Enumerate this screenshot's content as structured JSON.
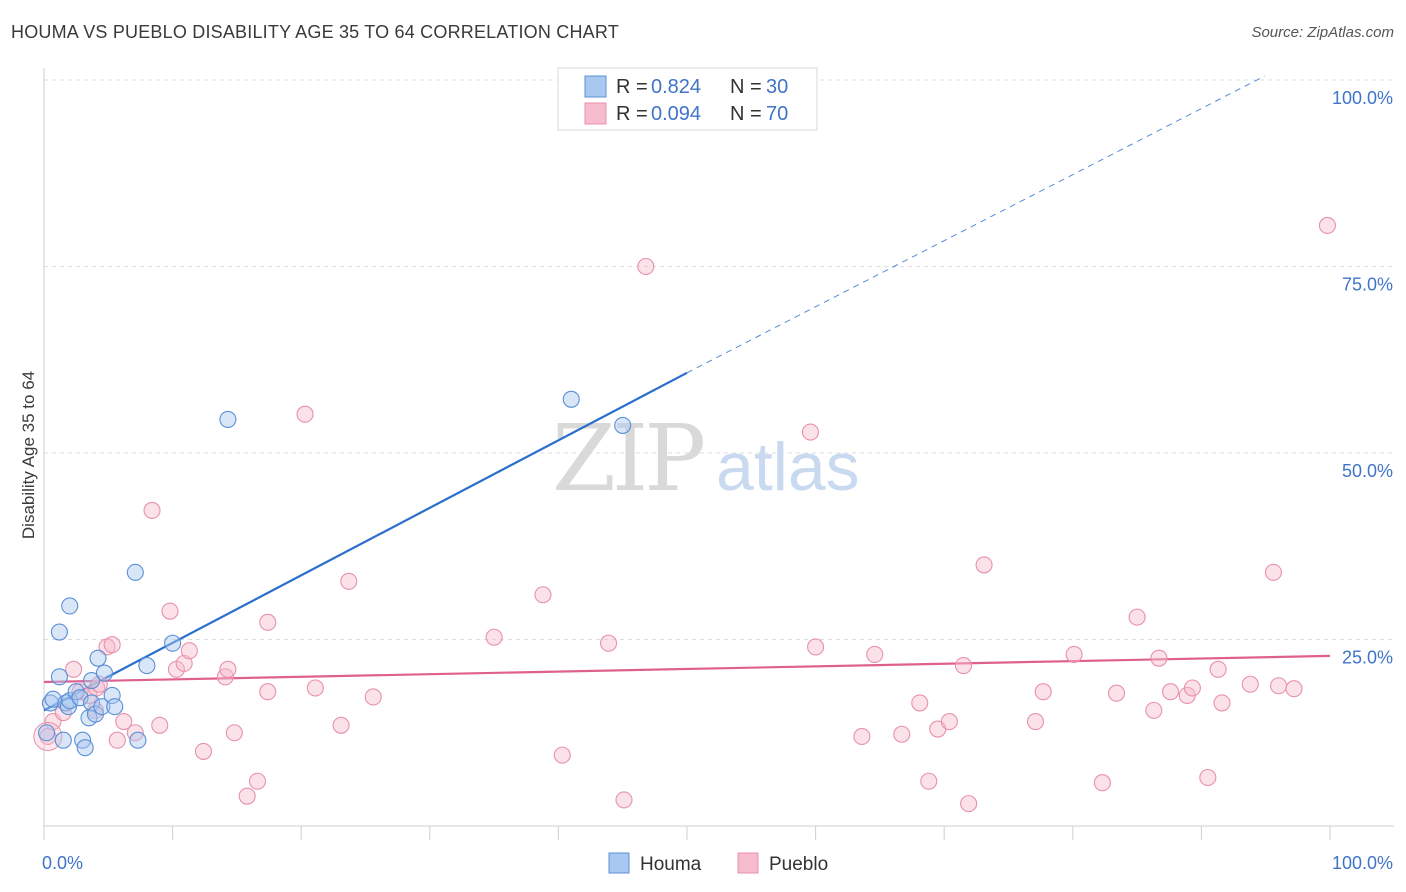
{
  "title": "HOUMA VS PUEBLO DISABILITY AGE 35 TO 64 CORRELATION CHART",
  "source": "Source: ZipAtlas.com",
  "watermark": {
    "part1": "ZIP",
    "part2": "atlas"
  },
  "colors": {
    "houma_fill": "#a8c8f0",
    "houma_stroke": "#5b8fd6",
    "houma_line": "#2a6fcc",
    "pueblo_fill": "#f7bccd",
    "pueblo_stroke": "#e891ab",
    "pueblo_line": "#e0608d",
    "grid": "#dddddd",
    "axis_label": "#3f74c9"
  },
  "chart_data": {
    "type": "scatter",
    "title": "HOUMA VS PUEBLO DISABILITY AGE 35 TO 64 CORRELATION CHART",
    "xlabel": "",
    "ylabel": "Disability Age 35 to 64",
    "xlim": [
      0,
      100
    ],
    "ylim": [
      0,
      100
    ],
    "x_tick_labels": [
      {
        "value": 0,
        "label": "0.0%"
      },
      {
        "value": 100,
        "label": "100.0%"
      }
    ],
    "y_tick_labels": [
      {
        "value": 25,
        "label": "25.0%"
      },
      {
        "value": 50,
        "label": "50.0%"
      },
      {
        "value": 75,
        "label": "75.0%"
      },
      {
        "value": 100,
        "label": "100.0%"
      }
    ],
    "legend": {
      "position": "top-center",
      "entries": [
        {
          "series": "Houma",
          "r_label": "R =",
          "r_value": "0.824",
          "n_label": "N =",
          "n_value": "30"
        },
        {
          "series": "Pueblo",
          "r_label": "R =",
          "r_value": "0.094",
          "n_label": "N =",
          "n_value": "70"
        }
      ]
    },
    "bottom_legend": [
      "Houma",
      "Pueblo"
    ],
    "series": [
      {
        "name": "Houma",
        "points": [
          [
            0.2,
            12.5
          ],
          [
            0.5,
            16.5
          ],
          [
            0.7,
            17.0
          ],
          [
            1.2,
            20.0
          ],
          [
            1.2,
            26.0
          ],
          [
            1.5,
            11.5
          ],
          [
            1.7,
            16.5
          ],
          [
            1.9,
            16.0
          ],
          [
            2.0,
            16.8
          ],
          [
            2.0,
            29.5
          ],
          [
            2.5,
            18.0
          ],
          [
            2.8,
            17.2
          ],
          [
            3.0,
            11.5
          ],
          [
            3.2,
            10.5
          ],
          [
            3.5,
            14.5
          ],
          [
            3.7,
            16.5
          ],
          [
            3.7,
            19.5
          ],
          [
            4.0,
            15.0
          ],
          [
            4.2,
            22.5
          ],
          [
            4.5,
            16.0
          ],
          [
            4.7,
            20.5
          ],
          [
            5.3,
            17.5
          ],
          [
            5.5,
            16.0
          ],
          [
            7.3,
            11.5
          ],
          [
            7.1,
            34.0
          ],
          [
            8.0,
            21.5
          ],
          [
            10.0,
            24.5
          ],
          [
            14.3,
            54.5
          ],
          [
            41.0,
            57.2
          ],
          [
            45.0,
            53.7
          ]
        ],
        "trend": {
          "x0": 0,
          "y0": 15.5,
          "x1": 100,
          "y1": 106.0,
          "solid_until_x": 50
        }
      },
      {
        "name": "Pueblo",
        "points": [
          [
            0.3,
            12.0
          ],
          [
            0.7,
            14.0
          ],
          [
            1.5,
            15.2
          ],
          [
            2.3,
            21.0
          ],
          [
            2.8,
            18.0
          ],
          [
            3.5,
            17.5
          ],
          [
            4.0,
            15.5
          ],
          [
            4.1,
            18.5
          ],
          [
            4.3,
            19.0
          ],
          [
            4.9,
            24.0
          ],
          [
            5.3,
            24.3
          ],
          [
            5.7,
            11.5
          ],
          [
            6.2,
            14.0
          ],
          [
            7.1,
            12.5
          ],
          [
            8.4,
            42.3
          ],
          [
            9.0,
            13.5
          ],
          [
            9.8,
            28.8
          ],
          [
            10.3,
            21.0
          ],
          [
            10.9,
            21.8
          ],
          [
            11.3,
            23.5
          ],
          [
            12.4,
            10.0
          ],
          [
            14.1,
            20.0
          ],
          [
            14.3,
            21.0
          ],
          [
            14.8,
            12.5
          ],
          [
            15.8,
            4.0
          ],
          [
            16.6,
            6.0
          ],
          [
            17.4,
            27.3
          ],
          [
            17.4,
            18.0
          ],
          [
            20.3,
            55.2
          ],
          [
            21.1,
            18.5
          ],
          [
            23.1,
            13.5
          ],
          [
            23.7,
            32.8
          ],
          [
            25.6,
            17.3
          ],
          [
            35.0,
            25.3
          ],
          [
            38.8,
            31.0
          ],
          [
            40.3,
            9.5
          ],
          [
            43.9,
            24.5
          ],
          [
            45.1,
            3.5
          ],
          [
            46.8,
            75.0
          ],
          [
            59.6,
            52.8
          ],
          [
            60.0,
            24.0
          ],
          [
            63.6,
            12.0
          ],
          [
            64.6,
            23.0
          ],
          [
            66.7,
            12.3
          ],
          [
            68.1,
            16.5
          ],
          [
            68.8,
            6.0
          ],
          [
            69.5,
            13.0
          ],
          [
            70.4,
            14.0
          ],
          [
            71.5,
            21.5
          ],
          [
            71.9,
            3.0
          ],
          [
            73.1,
            35.0
          ],
          [
            77.1,
            14.0
          ],
          [
            77.7,
            18.0
          ],
          [
            80.1,
            23.0
          ],
          [
            82.3,
            5.8
          ],
          [
            83.4,
            17.8
          ],
          [
            85.0,
            28.0
          ],
          [
            86.3,
            15.5
          ],
          [
            86.7,
            22.5
          ],
          [
            87.6,
            18.0
          ],
          [
            88.9,
            17.5
          ],
          [
            89.3,
            18.5
          ],
          [
            90.5,
            6.5
          ],
          [
            91.3,
            21.0
          ],
          [
            91.6,
            16.5
          ],
          [
            93.8,
            19.0
          ],
          [
            95.6,
            34.0
          ],
          [
            96.0,
            18.8
          ],
          [
            97.2,
            18.4
          ],
          [
            99.8,
            80.5
          ]
        ],
        "trend": {
          "x0": 0,
          "y0": 19.3,
          "x1": 100,
          "y1": 22.8
        }
      }
    ]
  }
}
